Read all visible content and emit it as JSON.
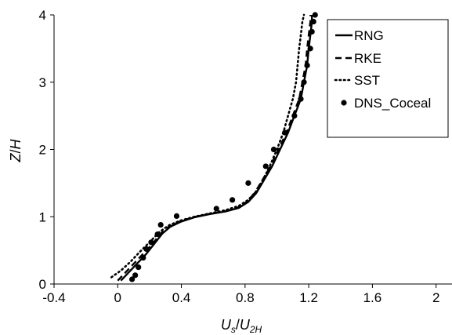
{
  "chart_data": {
    "type": "line",
    "title": "",
    "xlabel": {
      "main": "U",
      "sub1": "s",
      "slash": "/",
      "main2": "U",
      "sub2": "2H"
    },
    "ylabel": {
      "main": "Z",
      "slash": "/",
      "main2": "H"
    },
    "xlim": [
      -0.4,
      2.1
    ],
    "ylim": [
      0,
      4
    ],
    "xticks": [
      -0.4,
      0,
      0.4,
      0.8,
      1.2,
      1.6,
      2
    ],
    "xtick_labels": [
      "-0.4",
      "0",
      "0.4",
      "0.8",
      "1.2",
      "1.6",
      "2"
    ],
    "yticks": [
      0,
      1,
      2,
      3,
      4
    ],
    "ytick_labels": [
      "0",
      "1",
      "2",
      "3",
      "4"
    ],
    "grid": false,
    "legend_position": "top-right",
    "series": [
      {
        "name": "RNG",
        "style": "solid",
        "x": [
          0.02,
          0.06,
          0.12,
          0.18,
          0.23,
          0.28,
          0.33,
          0.4,
          0.48,
          0.58,
          0.68,
          0.76,
          0.82,
          0.87,
          0.92,
          0.97,
          1.02,
          1.07,
          1.11,
          1.15,
          1.17,
          1.19,
          1.2,
          1.21,
          1.22,
          1.22
        ],
        "y": [
          0.05,
          0.15,
          0.3,
          0.45,
          0.6,
          0.75,
          0.85,
          0.93,
          0.99,
          1.04,
          1.08,
          1.13,
          1.22,
          1.35,
          1.55,
          1.75,
          2.0,
          2.25,
          2.5,
          2.75,
          3.0,
          3.25,
          3.5,
          3.7,
          3.9,
          4.0
        ]
      },
      {
        "name": "RKE",
        "style": "dashed",
        "x": [
          0.0,
          0.04,
          0.1,
          0.16,
          0.22,
          0.27,
          0.32,
          0.39,
          0.47,
          0.57,
          0.67,
          0.75,
          0.81,
          0.86,
          0.91,
          0.96,
          1.01,
          1.06,
          1.1,
          1.14,
          1.16,
          1.18,
          1.19,
          1.2,
          1.21,
          1.21
        ],
        "y": [
          0.05,
          0.15,
          0.3,
          0.45,
          0.6,
          0.75,
          0.85,
          0.93,
          0.99,
          1.04,
          1.08,
          1.13,
          1.22,
          1.35,
          1.55,
          1.75,
          2.0,
          2.25,
          2.5,
          2.75,
          3.0,
          3.25,
          3.5,
          3.7,
          3.9,
          4.0
        ]
      },
      {
        "name": "SST",
        "style": "dotted",
        "x": [
          -0.04,
          0.02,
          0.08,
          0.14,
          0.2,
          0.26,
          0.32,
          0.39,
          0.48,
          0.58,
          0.68,
          0.76,
          0.82,
          0.87,
          0.92,
          0.96,
          1.0,
          1.04,
          1.07,
          1.1,
          1.12,
          1.13,
          1.14,
          1.15,
          1.16,
          1.17
        ],
        "y": [
          0.1,
          0.2,
          0.33,
          0.48,
          0.62,
          0.77,
          0.87,
          0.94,
          1.0,
          1.05,
          1.1,
          1.16,
          1.25,
          1.38,
          1.58,
          1.78,
          2.0,
          2.25,
          2.5,
          2.75,
          3.0,
          3.25,
          3.5,
          3.7,
          3.9,
          4.0
        ]
      },
      {
        "name": "DNS_Coceal",
        "style": "markers",
        "x": [
          0.09,
          0.11,
          0.13,
          0.16,
          0.18,
          0.21,
          0.25,
          0.27,
          0.37,
          0.62,
          0.72,
          0.82,
          0.93,
          0.98,
          1.05,
          1.11,
          1.15,
          1.17,
          1.19,
          1.21,
          1.22,
          1.23,
          1.24
        ],
        "y": [
          0.07,
          0.13,
          0.25,
          0.39,
          0.52,
          0.62,
          0.74,
          0.88,
          1.01,
          1.12,
          1.25,
          1.5,
          1.75,
          2.0,
          2.25,
          2.5,
          2.75,
          3.0,
          3.25,
          3.5,
          3.75,
          3.9,
          4.0
        ]
      }
    ]
  }
}
